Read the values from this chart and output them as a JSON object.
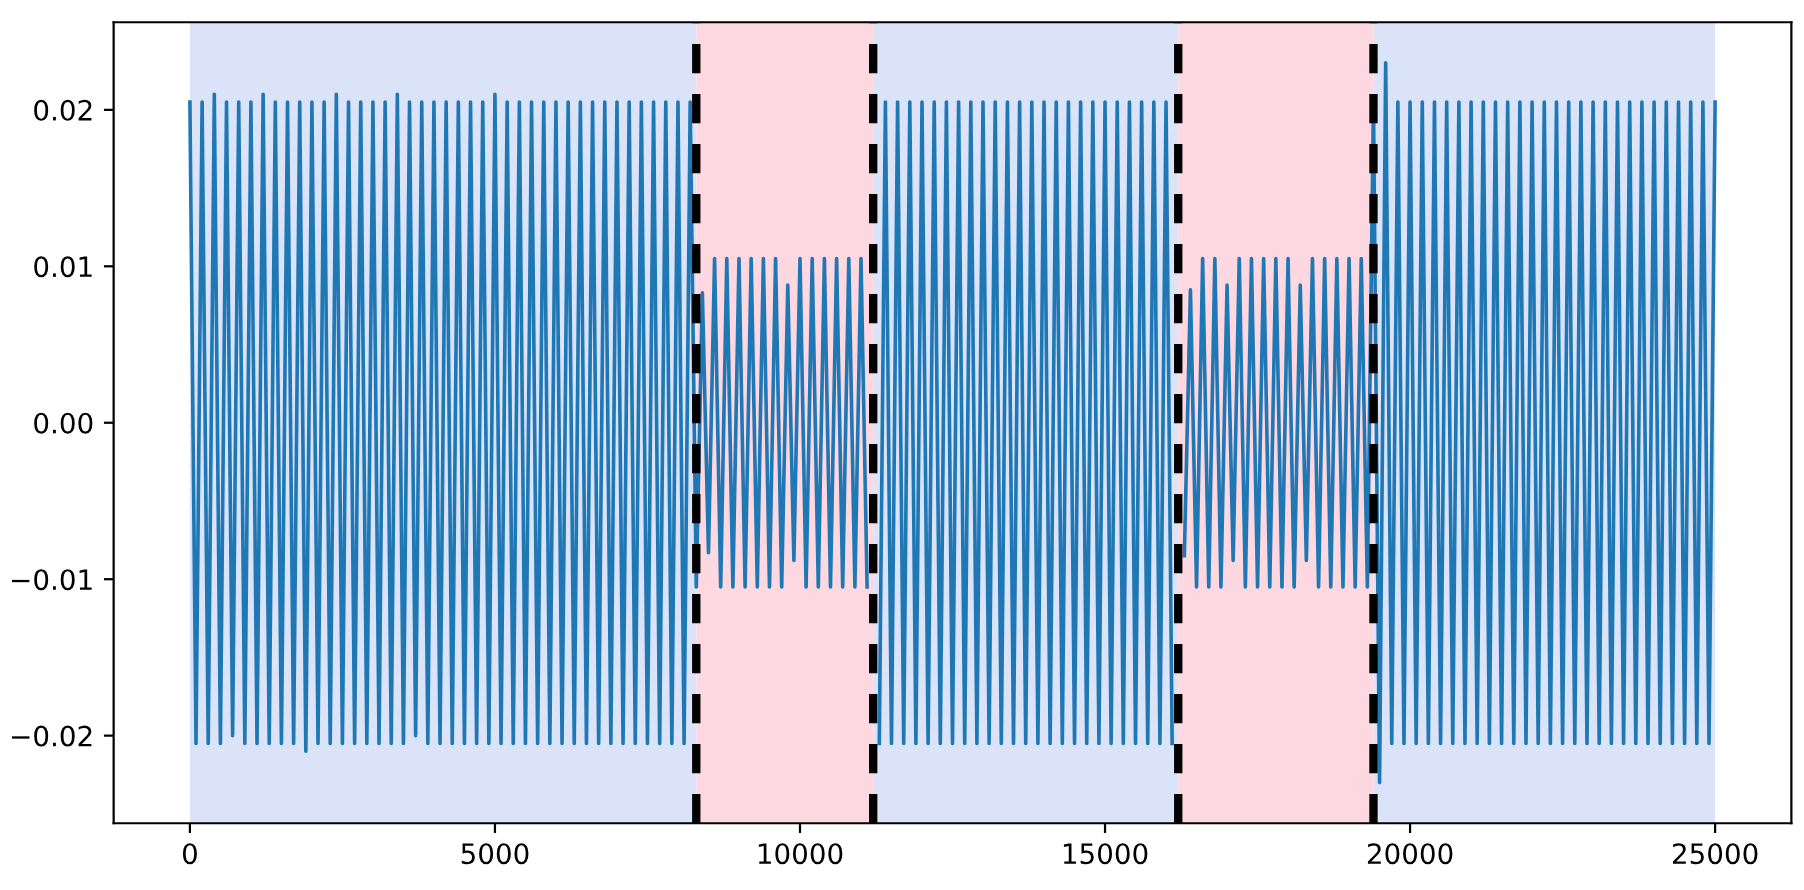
{
  "chart_data": {
    "type": "line",
    "xlim": [
      -1250,
      26250
    ],
    "ylim": [
      -0.0256,
      0.0256
    ],
    "xticks": [
      0,
      5000,
      10000,
      15000,
      20000,
      25000
    ],
    "yticks": [
      {
        "value": -0.02,
        "label": "−0.02"
      },
      {
        "value": -0.01,
        "label": "−0.01"
      },
      {
        "value": 0,
        "label": "0.00"
      },
      {
        "value": 0.01,
        "label": "0.01"
      },
      {
        "value": 0.02,
        "label": "0.02"
      }
    ],
    "grid": false,
    "legend": false,
    "marker": "none",
    "line_style": "solid",
    "bands": [
      {
        "axis": "x",
        "from": 0,
        "to": 8300,
        "color": "#dae3f8"
      },
      {
        "axis": "x",
        "from": 8300,
        "to": 11200,
        "color": "#fdd8e1"
      },
      {
        "axis": "x",
        "from": 11200,
        "to": 16200,
        "color": "#dae3f8"
      },
      {
        "axis": "x",
        "from": 16200,
        "to": 19400,
        "color": "#fdd8e1"
      },
      {
        "axis": "x",
        "from": 19400,
        "to": 25000,
        "color": "#dae3f8"
      }
    ],
    "ref_lines": [
      {
        "axis": "x",
        "value": 8300,
        "color": "#000000",
        "line_style": "dashed"
      },
      {
        "axis": "x",
        "value": 11200,
        "color": "#000000",
        "line_style": "dashed"
      },
      {
        "axis": "x",
        "value": 16200,
        "color": "#000000",
        "line_style": "dashed"
      },
      {
        "axis": "x",
        "value": 19400,
        "color": "#000000",
        "line_style": "dashed"
      }
    ],
    "series": [
      {
        "color": "#1f77b4",
        "x": [
          0,
          100,
          200,
          300,
          400,
          500,
          600,
          700,
          800,
          900,
          1000,
          1100,
          1200,
          1300,
          1400,
          1500,
          1600,
          1700,
          1800,
          1900,
          2000,
          2100,
          2200,
          2300,
          2400,
          2500,
          2600,
          2700,
          2800,
          2900,
          3000,
          3100,
          3200,
          3300,
          3400,
          3500,
          3600,
          3700,
          3800,
          3900,
          4000,
          4100,
          4200,
          4300,
          4400,
          4500,
          4600,
          4700,
          4800,
          4900,
          5000,
          5100,
          5200,
          5300,
          5400,
          5500,
          5600,
          5700,
          5800,
          5900,
          6000,
          6100,
          6200,
          6300,
          6400,
          6500,
          6600,
          6700,
          6800,
          6900,
          7000,
          7100,
          7200,
          7300,
          7400,
          7500,
          7600,
          7700,
          7800,
          7900,
          8000,
          8100,
          8200,
          8300,
          8400,
          8500,
          8600,
          8700,
          8800,
          8900,
          9000,
          9100,
          9200,
          9300,
          9400,
          9500,
          9600,
          9700,
          9800,
          9900,
          10000,
          10100,
          10200,
          10300,
          10400,
          10500,
          10600,
          10700,
          10800,
          10900,
          11000,
          11100,
          11200,
          11300,
          11400,
          11500,
          11600,
          11700,
          11800,
          11900,
          12000,
          12100,
          12200,
          12300,
          12400,
          12500,
          12600,
          12700,
          12800,
          12900,
          13000,
          13100,
          13200,
          13300,
          13400,
          13500,
          13600,
          13700,
          13800,
          13900,
          14000,
          14100,
          14200,
          14300,
          14400,
          14500,
          14600,
          14700,
          14800,
          14900,
          15000,
          15100,
          15200,
          15300,
          15400,
          15500,
          15600,
          15700,
          15800,
          15900,
          16000,
          16100,
          16200,
          16300,
          16400,
          16500,
          16600,
          16700,
          16800,
          16900,
          17000,
          17100,
          17200,
          17300,
          17400,
          17500,
          17600,
          17700,
          17800,
          17900,
          18000,
          18100,
          18200,
          18300,
          18400,
          18500,
          18600,
          18700,
          18800,
          18900,
          19000,
          19100,
          19200,
          19300,
          19400,
          19500,
          19600,
          19700,
          19800,
          19900,
          20000,
          20100,
          20200,
          20300,
          20400,
          20500,
          20600,
          20700,
          20800,
          20900,
          21000,
          21100,
          21200,
          21300,
          21400,
          21500,
          21600,
          21700,
          21800,
          21900,
          22000,
          22100,
          22200,
          22300,
          22400,
          22500,
          22600,
          22700,
          22800,
          22900,
          23000,
          23100,
          23200,
          23300,
          23400,
          23500,
          23600,
          23700,
          23800,
          23900,
          24000,
          24100,
          24200,
          24300,
          24400,
          24500,
          24600,
          24700,
          24800,
          24900,
          25000
        ],
        "values": [
          0.0205,
          -0.0205,
          0.0205,
          -0.0205,
          0.021,
          -0.0205,
          0.0205,
          -0.02,
          0.0205,
          -0.0205,
          0.0205,
          -0.0205,
          0.021,
          -0.0205,
          0.0205,
          -0.0205,
          0.0205,
          -0.0205,
          0.0205,
          -0.021,
          0.0205,
          -0.0205,
          0.0205,
          -0.0205,
          0.021,
          -0.0205,
          0.0205,
          -0.0205,
          0.0205,
          -0.0205,
          0.0205,
          -0.0205,
          0.0205,
          -0.0205,
          0.021,
          -0.0205,
          0.0205,
          -0.02,
          0.0205,
          -0.0205,
          0.0205,
          -0.0205,
          0.0205,
          -0.0205,
          0.0205,
          -0.0205,
          0.0205,
          -0.0205,
          0.0205,
          -0.0205,
          0.021,
          -0.0205,
          0.0205,
          -0.0205,
          0.0205,
          -0.0205,
          0.0205,
          -0.0205,
          0.0205,
          -0.0205,
          0.0205,
          -0.0205,
          0.0205,
          -0.0205,
          0.0205,
          -0.0205,
          0.0205,
          -0.0205,
          0.0205,
          -0.0205,
          0.0205,
          -0.0205,
          0.0205,
          -0.0205,
          0.0205,
          -0.0205,
          0.0205,
          -0.0205,
          0.0205,
          -0.0205,
          0.0205,
          -0.0205,
          0.0205,
          -0.0105,
          0.0083,
          -0.0083,
          0.0105,
          -0.0105,
          0.0105,
          -0.0105,
          0.0105,
          -0.0105,
          0.0105,
          -0.0105,
          0.0105,
          -0.0105,
          0.0105,
          -0.0105,
          0.0088,
          -0.0088,
          0.0105,
          -0.0105,
          0.0105,
          -0.0105,
          0.0105,
          -0.0105,
          0.0105,
          -0.0105,
          0.0105,
          -0.0105,
          0.0105,
          -0.0105,
          null,
          -0.0205,
          0.0205,
          -0.0205,
          0.0205,
          -0.0205,
          0.0205,
          -0.0205,
          0.0205,
          -0.0205,
          0.0205,
          -0.0205,
          0.0205,
          -0.0205,
          0.0205,
          -0.0205,
          0.0205,
          -0.0205,
          0.0205,
          -0.0205,
          0.0205,
          -0.0205,
          0.0205,
          -0.0205,
          0.0205,
          -0.0205,
          0.0205,
          -0.0205,
          0.0205,
          -0.0205,
          0.0205,
          -0.0205,
          0.0205,
          -0.0205,
          0.0205,
          -0.0205,
          0.0205,
          -0.0205,
          0.0205,
          -0.0205,
          0.0205,
          -0.0205,
          0.0205,
          -0.0205,
          0.0205,
          -0.0205,
          0.0205,
          -0.0205,
          0.0205,
          -0.0205,
          null,
          -0.0085,
          0.0085,
          -0.0105,
          0.0105,
          -0.0105,
          0.0105,
          -0.0105,
          0.0088,
          -0.0088,
          0.0105,
          -0.0105,
          0.0105,
          -0.0105,
          0.0105,
          -0.0105,
          0.0105,
          -0.0105,
          0.0105,
          -0.0105,
          0.0088,
          -0.0088,
          0.0105,
          -0.0105,
          0.0105,
          -0.0105,
          0.0105,
          -0.0105,
          0.0105,
          -0.0105,
          0.0105,
          -0.0105,
          0.0205,
          -0.023,
          0.023,
          -0.0205,
          0.0205,
          -0.0205,
          0.0205,
          -0.0205,
          0.0205,
          -0.0205,
          0.0205,
          -0.0205,
          0.0205,
          -0.0205,
          0.0205,
          -0.0205,
          0.0205,
          -0.0205,
          0.0205,
          -0.0205,
          0.0205,
          -0.0205,
          0.0205,
          -0.0205,
          0.0205,
          -0.0205,
          0.0205,
          -0.0205,
          0.0205,
          -0.0205,
          0.0205,
          -0.0205,
          0.0205,
          -0.0205,
          0.0205,
          -0.0205,
          0.0205,
          -0.0205,
          0.0205,
          -0.0205,
          0.0205,
          -0.0205,
          0.0205,
          -0.0205,
          0.0205,
          -0.0205,
          0.0205,
          -0.0205,
          0.0205,
          -0.0205,
          0.0205,
          -0.0205,
          0.0205,
          -0.0205,
          0.0205,
          -0.0205,
          0.0205
        ]
      }
    ]
  }
}
